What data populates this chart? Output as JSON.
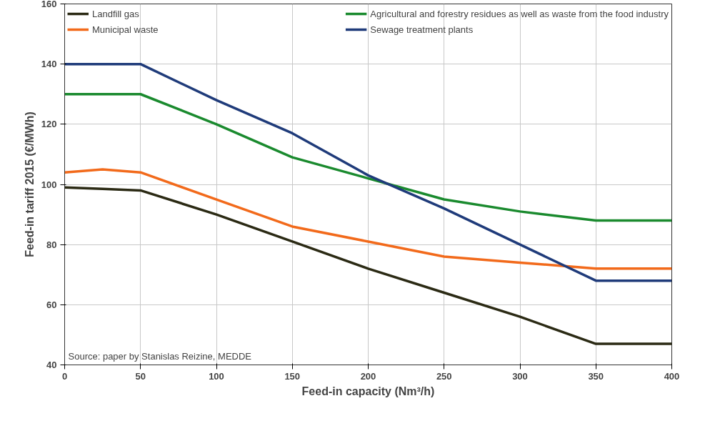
{
  "chart_data": {
    "type": "line",
    "xlabel": "Feed-in capacity (Nm³/h)",
    "ylabel": "Feed-in tariff 2015 (€/MWh)",
    "x": [
      0,
      25,
      50,
      100,
      150,
      200,
      250,
      300,
      350,
      400
    ],
    "series": [
      {
        "name": "Landfill gas",
        "color": "#2b2a14",
        "values": [
          99,
          98.5,
          98,
          90,
          81,
          72,
          64,
          56,
          47,
          47
        ]
      },
      {
        "name": "Agricultural and forestry residues as well as waste from the food industry",
        "color": "#1a8a2e",
        "values": [
          130,
          130,
          130,
          120,
          109,
          102,
          95,
          91,
          88,
          88
        ]
      },
      {
        "name": "Municipal waste",
        "color": "#f26a1b",
        "values": [
          104,
          105,
          104,
          95,
          86,
          81,
          76,
          74,
          72,
          72
        ]
      },
      {
        "name": "Sewage treatment plants",
        "color": "#1f3b7a",
        "values": [
          140,
          140,
          140,
          128,
          117,
          103,
          92,
          80,
          68,
          68
        ]
      }
    ],
    "xlim": [
      0,
      400
    ],
    "ylim": [
      40,
      160
    ],
    "xticks": [
      0,
      50,
      100,
      150,
      200,
      250,
      300,
      350,
      400
    ],
    "yticks": [
      40,
      60,
      80,
      100,
      120,
      140,
      160
    ],
    "grid": true,
    "legend": "top",
    "line_style": "solid",
    "marker": "none",
    "annotations": [
      "Source: paper by Stanislas Reizine, MEDDE"
    ]
  }
}
